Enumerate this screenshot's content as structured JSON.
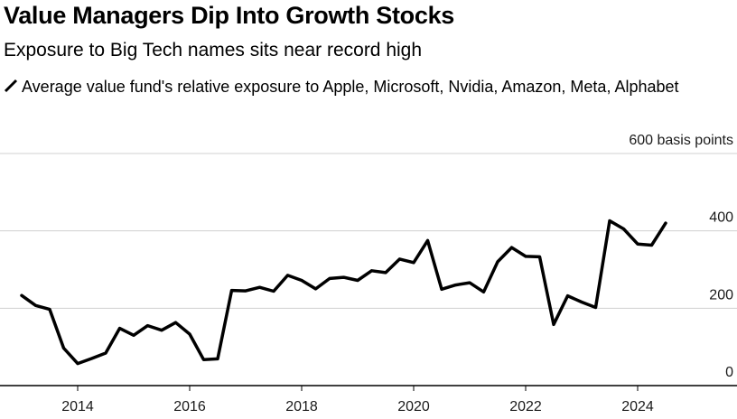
{
  "header": {
    "title": "Value Managers Dip Into Growth Stocks",
    "subtitle": "Exposure to Big Tech names sits near record high"
  },
  "legend": {
    "label": "Average value fund's relative exposure to Apple, Microsoft, Nvidia, Amazon, Meta, Alphabet"
  },
  "colors": {
    "line": "#000000",
    "grid": "#d0d0d0",
    "axis": "#000000"
  },
  "chart_data": {
    "type": "line",
    "title": "Value Managers Dip Into Growth Stocks",
    "subtitle": "Exposure to Big Tech names sits near record high",
    "ylabel": "",
    "xlabel": "",
    "ylim": [
      0,
      600
    ],
    "xlim": [
      2012.9,
      2026.5
    ],
    "grid": true,
    "y_ticks": [
      {
        "value": 0,
        "label": "0"
      },
      {
        "value": 200,
        "label": "200"
      },
      {
        "value": 400,
        "label": "400"
      },
      {
        "value": 600,
        "label": "600 basis points"
      }
    ],
    "x_ticks": [
      {
        "value": 2014,
        "label": "2014"
      },
      {
        "value": 2016,
        "label": "2016"
      },
      {
        "value": 2018,
        "label": "2018"
      },
      {
        "value": 2020,
        "label": "2020"
      },
      {
        "value": 2022,
        "label": "2022"
      },
      {
        "value": 2024,
        "label": "2024"
      }
    ],
    "series": [
      {
        "name": "Average value fund's relative exposure to Apple, Microsoft, Nvidia, Amazon, Meta, Alphabet",
        "x": [
          2013.0,
          2013.25,
          2013.5,
          2013.75,
          2014.0,
          2014.25,
          2014.5,
          2014.75,
          2015.0,
          2015.25,
          2015.5,
          2015.75,
          2016.0,
          2016.25,
          2016.5,
          2016.75,
          2017.0,
          2017.25,
          2017.5,
          2017.75,
          2018.0,
          2018.25,
          2018.5,
          2018.75,
          2019.0,
          2019.25,
          2019.5,
          2019.75,
          2020.0,
          2020.25,
          2020.5,
          2020.75,
          2021.0,
          2021.25,
          2021.5,
          2021.75,
          2022.0,
          2022.25,
          2022.5,
          2022.75,
          2023.0,
          2023.25,
          2023.5,
          2023.75,
          2024.0,
          2024.25,
          2024.5
        ],
        "y": [
          233,
          207,
          197,
          97,
          57,
          70,
          84,
          148,
          130,
          155,
          143,
          163,
          133,
          67,
          69,
          246,
          245,
          254,
          244,
          285,
          272,
          250,
          277,
          280,
          272,
          297,
          292,
          327,
          318,
          375,
          249,
          260,
          266,
          242,
          320,
          357,
          334,
          333,
          158,
          232,
          216,
          202,
          426,
          405,
          366,
          363,
          420
        ]
      }
    ]
  }
}
